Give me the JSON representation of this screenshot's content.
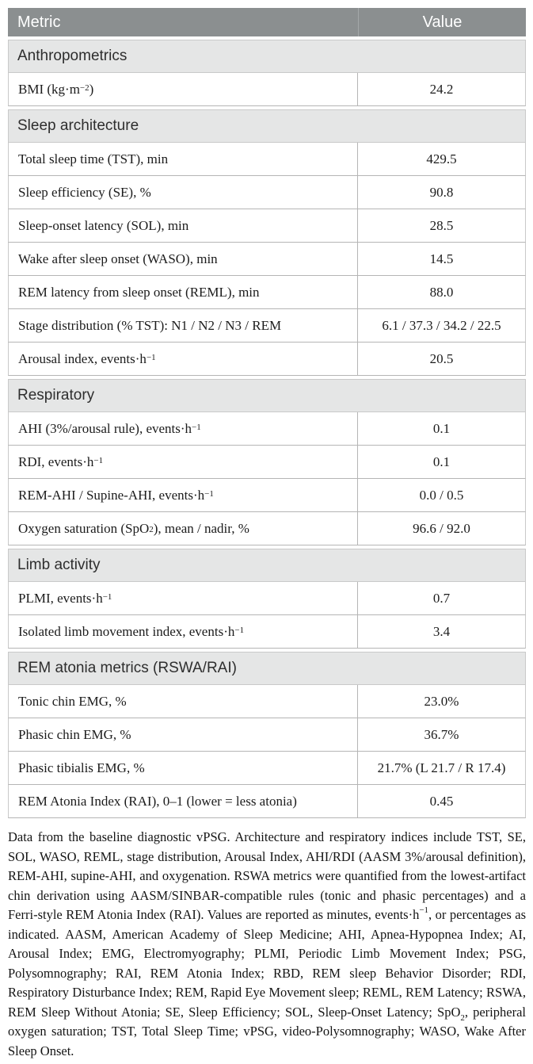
{
  "colors": {
    "header_bg": "#8b8f90",
    "header_text": "#ffffff",
    "section_bg": "#e5e6e6",
    "row_border": "#b5b5b5",
    "outer_border": "#c9c9c9",
    "body_text": "#1b1b1b"
  },
  "table": {
    "header": {
      "metric": "Metric",
      "value": "Value"
    },
    "sections": [
      {
        "title": "Anthropometrics",
        "rows": [
          {
            "label": [
              {
                "t": "BMI (kg·m"
              },
              {
                "t": "−2",
                "s": "sup"
              },
              {
                "t": ")"
              }
            ],
            "value": [
              {
                "t": "24.2"
              }
            ]
          }
        ]
      },
      {
        "title": "Sleep architecture",
        "rows": [
          {
            "label": [
              {
                "t": "Total sleep time (TST), min"
              }
            ],
            "value": [
              {
                "t": "429.5"
              }
            ]
          },
          {
            "label": [
              {
                "t": "Sleep efficiency (SE), %"
              }
            ],
            "value": [
              {
                "t": "90.8"
              }
            ]
          },
          {
            "label": [
              {
                "t": "Sleep-onset latency (SOL), min"
              }
            ],
            "value": [
              {
                "t": "28.5"
              }
            ]
          },
          {
            "label": [
              {
                "t": "Wake after sleep onset (WASO), min"
              }
            ],
            "value": [
              {
                "t": "14.5"
              }
            ]
          },
          {
            "label": [
              {
                "t": "REM latency from sleep onset (REML), min"
              }
            ],
            "value": [
              {
                "t": "88.0"
              }
            ]
          },
          {
            "label": [
              {
                "t": "Stage distribution (% TST): N1 / N2 / N3 / REM"
              }
            ],
            "value": [
              {
                "t": "6.1 / 37.3 / 34.2 / 22.5"
              }
            ]
          },
          {
            "label": [
              {
                "t": "Arousal index, events·h"
              },
              {
                "t": "−1",
                "s": "sup"
              }
            ],
            "value": [
              {
                "t": "20.5"
              }
            ]
          }
        ]
      },
      {
        "title": "Respiratory",
        "rows": [
          {
            "label": [
              {
                "t": "AHI (3%/arousal rule), events·h"
              },
              {
                "t": "−1",
                "s": "sup"
              }
            ],
            "value": [
              {
                "t": "0.1"
              }
            ]
          },
          {
            "label": [
              {
                "t": "RDI, events·h"
              },
              {
                "t": "−1",
                "s": "sup"
              }
            ],
            "value": [
              {
                "t": "0.1"
              }
            ]
          },
          {
            "label": [
              {
                "t": "REM-AHI / Supine-AHI, events·h"
              },
              {
                "t": "−1",
                "s": "sup"
              }
            ],
            "value": [
              {
                "t": "0.0 / 0.5"
              }
            ]
          },
          {
            "label": [
              {
                "t": "Oxygen saturation (SpO"
              },
              {
                "t": "2",
                "s": "sub"
              },
              {
                "t": "), mean / nadir, %"
              }
            ],
            "value": [
              {
                "t": "96.6 / 92.0"
              }
            ]
          }
        ]
      },
      {
        "title": "Limb activity",
        "rows": [
          {
            "label": [
              {
                "t": "PLMI, events·h"
              },
              {
                "t": "−1",
                "s": "sup"
              }
            ],
            "value": [
              {
                "t": "0.7"
              }
            ]
          },
          {
            "label": [
              {
                "t": "Isolated limb movement index, events·h"
              },
              {
                "t": "−1",
                "s": "sup"
              }
            ],
            "value": [
              {
                "t": "3.4"
              }
            ]
          }
        ]
      },
      {
        "title": "REM atonia metrics (RSWA/RAI)",
        "rows": [
          {
            "label": [
              {
                "t": "Tonic chin EMG, %"
              }
            ],
            "value": [
              {
                "t": "23.0%"
              }
            ]
          },
          {
            "label": [
              {
                "t": "Phasic chin EMG, %"
              }
            ],
            "value": [
              {
                "t": "36.7%"
              }
            ]
          },
          {
            "label": [
              {
                "t": "Phasic tibialis EMG, %"
              }
            ],
            "value": [
              {
                "t": "21.7% (L 21.7 / R 17.4)"
              }
            ]
          },
          {
            "label": [
              {
                "t": "REM Atonia Index (RAI), 0–1 (lower = less atonia)"
              }
            ],
            "value": [
              {
                "t": "0.45"
              }
            ]
          }
        ]
      }
    ]
  },
  "footnote": {
    "segments": [
      {
        "t": "Data from the baseline diagnostic vPSG. Architecture and respiratory indices include TST, SE, SOL, WASO, REML, stage distribution, Arousal Index, AHI/RDI (AASM 3%/arousal definition), REM-AHI, supine-AHI, and oxygenation. RSWA metrics were quantified from the lowest-artifact chin derivation using AASM/SINBAR-compatible rules (tonic and phasic percentages) and a Ferri-style REM Atonia Index (RAI). Values are reported as minutes, events·h"
      },
      {
        "t": "−1",
        "s": "sup"
      },
      {
        "t": ", or percentages as indicated. AASM, American Academy of Sleep Medicine; AHI, Apnea-Hypopnea Index; AI, Arousal Index; EMG, Electromyography; PLMI, Periodic Limb Movement Index; PSG, Polysomnography; RAI, REM Atonia Index; RBD, REM sleep Behavior Disorder; RDI, Respiratory Disturbance Index; REM, Rapid Eye Movement sleep; REML, REM Latency; RSWA, REM Sleep Without Atonia; SE, Sleep Efficiency; SOL, Sleep-Onset Latency; SpO"
      },
      {
        "t": "2",
        "s": "sub"
      },
      {
        "t": ", peripheral oxygen saturation; TST, Total Sleep Time; vPSG, video-Polysomnography; WASO, Wake After Sleep Onset."
      }
    ]
  }
}
